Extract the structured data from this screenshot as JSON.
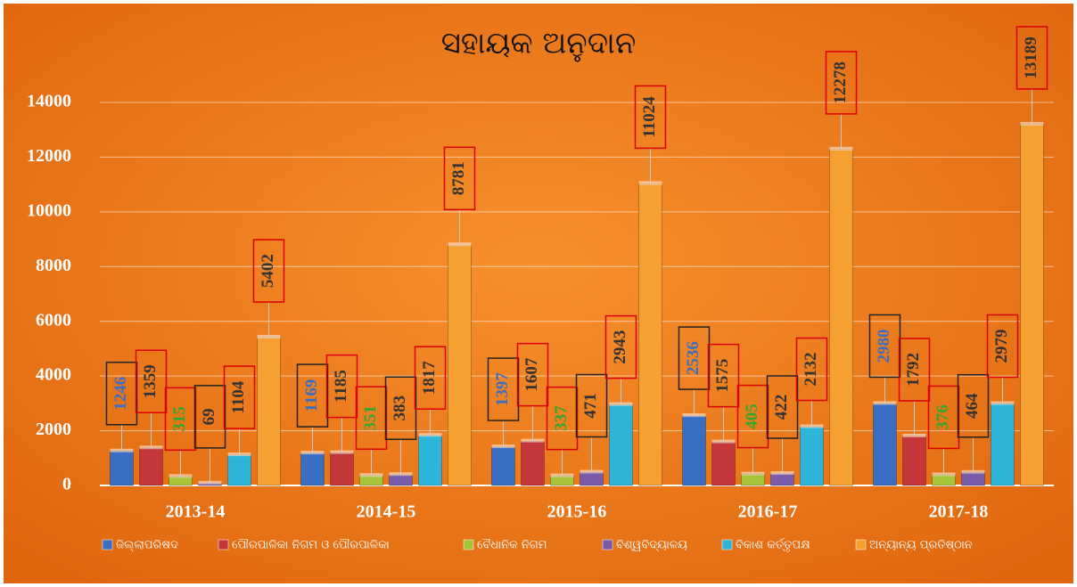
{
  "chart_data": {
    "type": "bar",
    "title": "ସହାୟକ ଅନୁଦାନ",
    "categories": [
      "2013-14",
      "2014-15",
      "2015-16",
      "2016-17",
      "2017-18"
    ],
    "series": [
      {
        "name": "ଜିଲ୍ଲାପରିଷଦ",
        "color": "#3a6ec4",
        "values": [
          1246,
          1169,
          1397,
          2536,
          2980
        ]
      },
      {
        "name": "ପୌରପାଳିକା ନିଗମ ଓ ପୌରପାଳିକା",
        "color": "#c4363a",
        "values": [
          1359,
          1185,
          1607,
          1575,
          1792
        ]
      },
      {
        "name": "ବୈଧାନିକ ନିଗମ",
        "color": "#a8c43a",
        "values": [
          315,
          351,
          337,
          405,
          376
        ]
      },
      {
        "name": "ବିଶ୍ୱବିଦ୍ୟାଳୟ",
        "color": "#7a5aaa",
        "values": [
          69,
          383,
          471,
          422,
          464
        ]
      },
      {
        "name": "ବିକାଶ କର୍ତ୍ତୃପକ୍ଷ",
        "color": "#2cb5d8",
        "values": [
          1104,
          1817,
          2943,
          2132,
          2979
        ]
      },
      {
        "name": "ଅନ୍ୟାନ୍ୟ ପ୍ରତିଷ୍ଠାନ",
        "color": "#f5a030",
        "values": [
          5402,
          8781,
          11024,
          12278,
          13189
        ]
      }
    ],
    "ylim": [
      0,
      14000
    ],
    "yticks": [
      0,
      2000,
      4000,
      6000,
      8000,
      10000,
      12000,
      14000
    ],
    "grid": true,
    "legend": "bottom"
  }
}
